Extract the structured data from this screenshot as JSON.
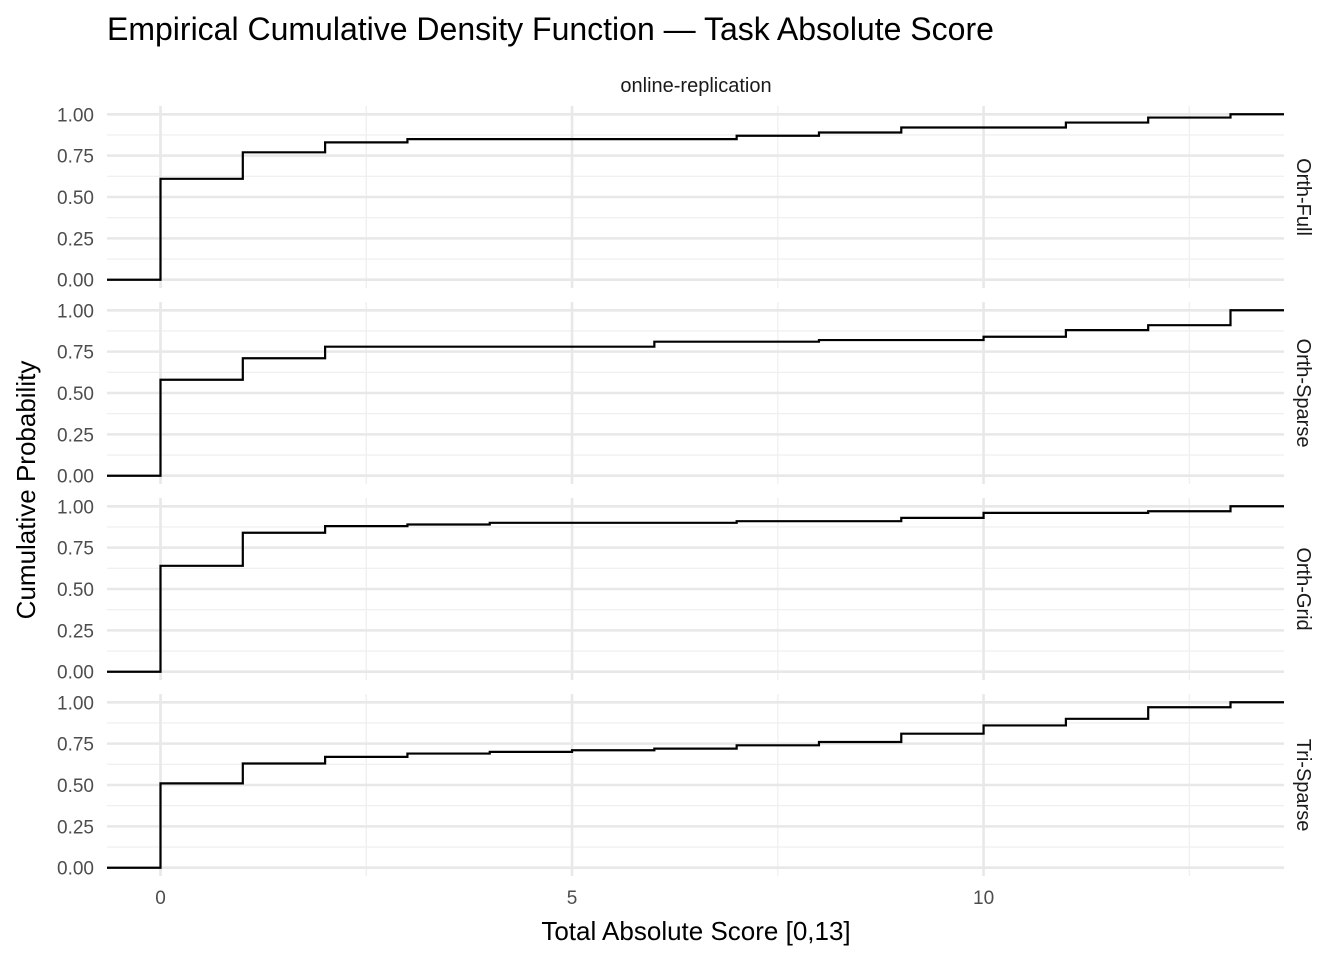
{
  "chart_data": {
    "type": "line",
    "subtype": "ecdf-step",
    "title": "Empirical Cumulative Density Function — Task Absolute Score",
    "column_facet": "online-replication",
    "xlabel": "Total Absolute Score [0,13]",
    "ylabel": "Cumulative Probability",
    "xlim": [
      -0.65,
      13.65
    ],
    "ylim": [
      -0.05,
      1.05
    ],
    "x_ticks": [
      0,
      5,
      10
    ],
    "x_tick_labels": [
      "0",
      "5",
      "10"
    ],
    "y_ticks": [
      0,
      0.25,
      0.5,
      0.75,
      1
    ],
    "y_tick_labels": [
      "0.00",
      "0.25",
      "0.50",
      "0.75",
      "1.00"
    ],
    "grid": true,
    "x_steps": [
      0,
      1,
      2,
      3,
      4,
      5,
      6,
      7,
      8,
      9,
      10,
      11,
      12,
      13
    ],
    "series": [
      {
        "name": "Orth-Full",
        "values": [
          0.61,
          0.77,
          0.83,
          0.85,
          0.85,
          0.85,
          0.85,
          0.87,
          0.89,
          0.92,
          0.92,
          0.95,
          0.98,
          1.0
        ]
      },
      {
        "name": "Orth-Sparse",
        "values": [
          0.58,
          0.71,
          0.78,
          0.78,
          0.78,
          0.78,
          0.81,
          0.81,
          0.82,
          0.82,
          0.84,
          0.88,
          0.91,
          1.0
        ]
      },
      {
        "name": "Orth-Grid",
        "values": [
          0.64,
          0.84,
          0.88,
          0.89,
          0.9,
          0.9,
          0.9,
          0.91,
          0.91,
          0.93,
          0.96,
          0.96,
          0.97,
          1.0
        ]
      },
      {
        "name": "Tri-Sparse",
        "values": [
          0.51,
          0.63,
          0.67,
          0.69,
          0.7,
          0.71,
          0.72,
          0.74,
          0.76,
          0.81,
          0.86,
          0.9,
          0.97,
          1.0
        ]
      }
    ]
  }
}
